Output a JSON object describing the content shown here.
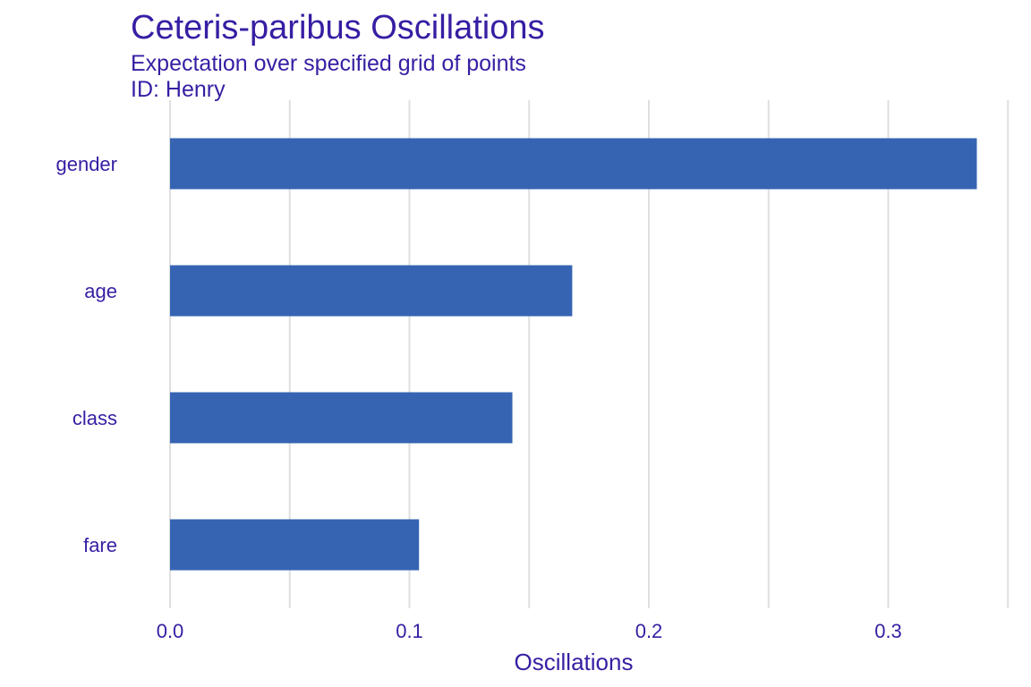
{
  "colors": {
    "bar": "#3664b3",
    "text": "#371ea3",
    "grid": "#dfdfdf"
  },
  "chart_data": {
    "type": "bar",
    "orientation": "horizontal",
    "title": "Ceteris-paribus Oscillations",
    "subtitle": "Expectation over specified grid of points\nID: Henry",
    "xlabel": "Oscillations",
    "ylabel": "",
    "categories": [
      "gender",
      "age",
      "class",
      "fare"
    ],
    "values": [
      0.337,
      0.168,
      0.143,
      0.104
    ],
    "xlim": [
      0,
      0.35
    ],
    "xticks": [
      0.0,
      0.1,
      0.2,
      0.3
    ],
    "xtick_labels": [
      "0.0",
      "0.1",
      "0.2",
      "0.3"
    ],
    "grid": "vertical",
    "legend": "none"
  }
}
